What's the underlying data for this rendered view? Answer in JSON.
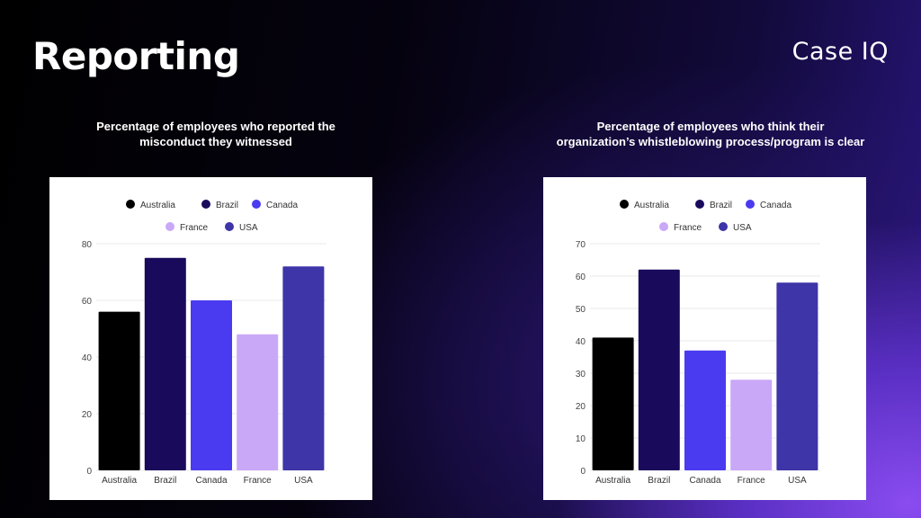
{
  "header": {
    "title": "Reporting",
    "logo": "Case IQ"
  },
  "colors": {
    "Australia": "#000000",
    "Brazil": "#1a0a5c",
    "Canada": "#4a3af0",
    "France": "#c9a8f8",
    "USA": "#3d35a8"
  },
  "chart_data": [
    {
      "type": "bar",
      "title_line1": "Percentage of employees who reported the",
      "title_line2": "misconduct they witnessed",
      "categories": [
        "Australia",
        "Brazil",
        "Canada",
        "France",
        "USA"
      ],
      "values": [
        56,
        75,
        60,
        48,
        72
      ],
      "ylim": [
        0,
        80
      ],
      "yticks": [
        0,
        20,
        40,
        60,
        80
      ],
      "legend": [
        "Australia",
        "Brazil",
        "Canada",
        "France",
        "USA"
      ],
      "legend_position": "top"
    },
    {
      "type": "bar",
      "title_line1": "Percentage of employees who think their",
      "title_line2": "organization’s whistleblowing process/program is clear",
      "categories": [
        "Australia",
        "Brazil",
        "Canada",
        "France",
        "USA"
      ],
      "values": [
        41,
        62,
        37,
        28,
        58
      ],
      "ylim": [
        0,
        70
      ],
      "yticks": [
        0,
        10,
        20,
        30,
        40,
        50,
        60,
        70
      ],
      "legend": [
        "Australia",
        "Brazil",
        "Canada",
        "France",
        "USA"
      ],
      "legend_position": "top"
    }
  ]
}
